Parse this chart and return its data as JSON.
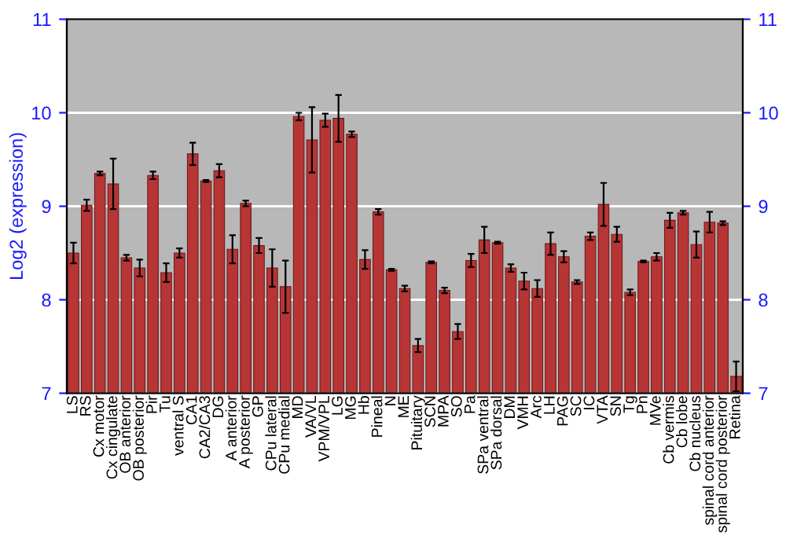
{
  "chart_data": {
    "type": "bar",
    "ylabel": "Log2 (expression)",
    "categories": [
      "LS",
      "RS",
      "Cx motor",
      "Cx cingulate",
      "OB anterior",
      "OB posterior",
      "Pir",
      "Tu",
      "ventral S",
      "CA1",
      "CA2/CA3",
      "DG",
      "A anterior",
      "A posterior",
      "GP",
      "CPu lateral",
      "CPu medial",
      "MD",
      "VA/VL",
      "VPM/VPL",
      "LG",
      "MG",
      "Hb",
      "Pineal",
      "N",
      "ME",
      "Pituitary",
      "SCN",
      "MPA",
      "SO",
      "Pa",
      "SPa ventral",
      "SPa dorsal",
      "DM",
      "VMH",
      "Arc",
      "LH",
      "PAG",
      "SC",
      "IC",
      "VTA",
      "SN",
      "Tg",
      "Pn",
      "MVe",
      "Cb vermis",
      "Cb lobe",
      "Cb nucleus",
      "spinal cord anterior",
      "spinal cord posterior",
      "Retina"
    ],
    "values": [
      8.5,
      9.01,
      9.35,
      9.24,
      8.45,
      8.34,
      9.33,
      8.29,
      8.5,
      9.56,
      9.27,
      9.38,
      8.54,
      9.03,
      8.58,
      8.34,
      8.14,
      9.96,
      9.71,
      9.92,
      9.94,
      9.77,
      8.43,
      8.94,
      8.32,
      8.12,
      7.51,
      8.4,
      8.1,
      7.66,
      8.42,
      8.64,
      8.61,
      8.34,
      8.2,
      8.12,
      8.6,
      8.46,
      8.19,
      8.68,
      9.02,
      8.7,
      8.08,
      8.41,
      8.46,
      8.85,
      8.93,
      8.59,
      8.83,
      8.82,
      7.18
    ],
    "errors": [
      0.11,
      0.06,
      0.02,
      0.27,
      0.03,
      0.09,
      0.04,
      0.1,
      0.05,
      0.12,
      0.01,
      0.07,
      0.15,
      0.03,
      0.08,
      0.2,
      0.28,
      0.04,
      0.35,
      0.07,
      0.25,
      0.03,
      0.1,
      0.03,
      0.01,
      0.03,
      0.07,
      0.01,
      0.03,
      0.08,
      0.07,
      0.14,
      0.01,
      0.04,
      0.09,
      0.09,
      0.12,
      0.06,
      0.02,
      0.04,
      0.23,
      0.08,
      0.03,
      0.01,
      0.04,
      0.08,
      0.02,
      0.14,
      0.11,
      0.02,
      0.16
    ],
    "color": "#b83535",
    "ylim": [
      7,
      11
    ],
    "yticks": [
      7,
      8,
      9,
      10,
      11
    ],
    "y2lim": [
      7,
      11
    ],
    "y2ticks": [
      7,
      8,
      9,
      10,
      11
    ],
    "grid": "y"
  }
}
